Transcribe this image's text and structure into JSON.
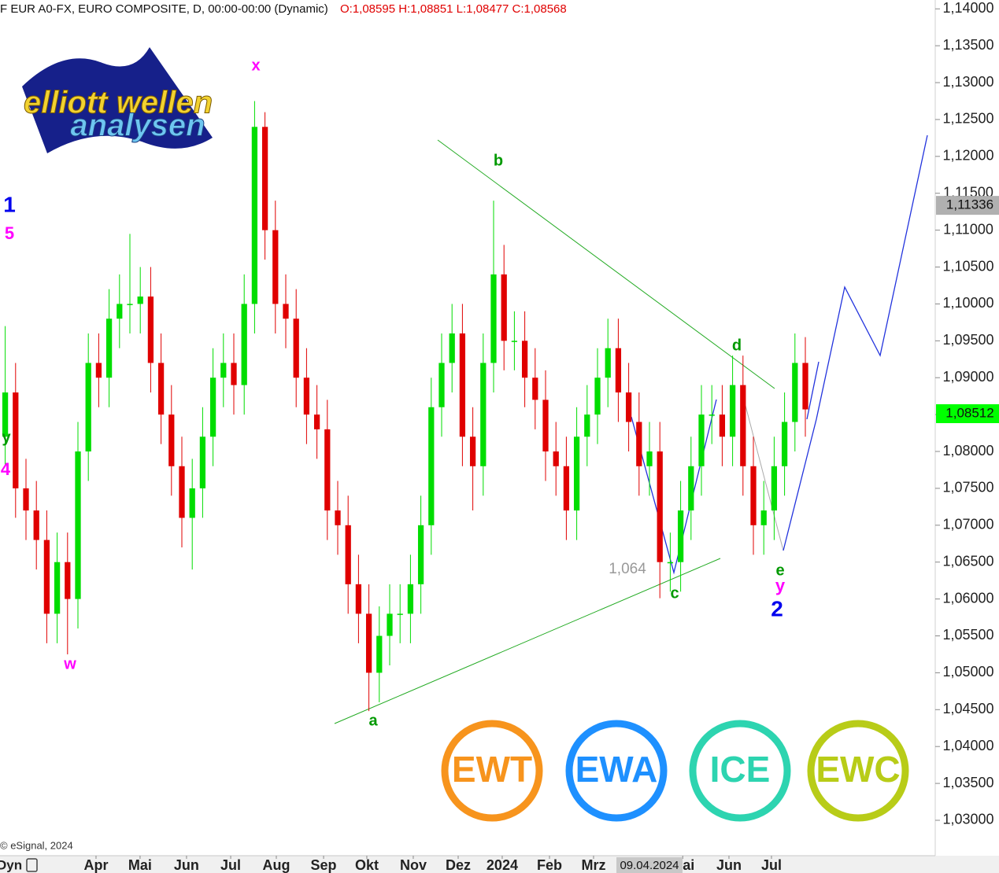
{
  "chart_data": {
    "type": "candlestick",
    "title": "F EUR A0-FX, EURO COMPOSITE, D, 00:00-00:00 (Dynamic)",
    "ohlc_label": "O:1,08595 H:1,08851 L:1,08477 C:1,08568",
    "source": "© eSignal, 2024",
    "up_color": "#00dd00",
    "down_color": "#e00000",
    "xlim": [
      -0.5,
      89.5
    ],
    "ylim": [
      1.0252,
      1.1412
    ],
    "grid": false,
    "open": [
      1.082,
      1.088,
      1.075,
      1.072,
      1.068,
      1.058,
      1.065,
      1.06,
      1.08,
      1.092,
      1.09,
      1.098,
      1.1,
      1.1,
      1.101,
      1.092,
      1.085,
      1.078,
      1.071,
      1.075,
      1.082,
      1.09,
      1.092,
      1.089,
      1.1,
      1.124,
      1.11,
      1.1,
      1.098,
      1.09,
      1.085,
      1.083,
      1.072,
      1.07,
      1.062,
      1.058,
      1.05,
      1.055,
      1.058,
      1.058,
      1.062,
      1.07,
      1.086,
      1.092,
      1.096,
      1.082,
      1.078,
      1.092,
      1.104,
      1.095,
      1.095,
      1.09,
      1.087,
      1.08,
      1.078,
      1.072,
      1.082,
      1.085,
      1.09,
      1.094,
      1.088,
      1.084,
      1.078,
      1.08,
      1.065,
      1.065,
      1.072,
      1.078,
      1.085,
      1.085,
      1.082,
      1.089,
      1.078,
      1.07,
      1.072,
      1.078,
      1.084,
      1.092
    ],
    "high": [
      1.097,
      1.092,
      1.079,
      1.076,
      1.072,
      1.069,
      1.069,
      1.084,
      1.096,
      1.096,
      1.102,
      1.104,
      1.1095,
      1.105,
      1.105,
      1.096,
      1.089,
      1.082,
      1.079,
      1.086,
      1.094,
      1.096,
      1.096,
      1.104,
      1.1275,
      1.126,
      1.114,
      1.104,
      1.102,
      1.094,
      1.089,
      1.087,
      1.076,
      1.074,
      1.066,
      1.062,
      1.059,
      1.062,
      1.062,
      1.066,
      1.074,
      1.09,
      1.096,
      1.1,
      1.1,
      1.086,
      1.096,
      1.114,
      1.108,
      1.099,
      1.099,
      1.094,
      1.091,
      1.084,
      1.082,
      1.086,
      1.089,
      1.094,
      1.098,
      1.098,
      1.092,
      1.088,
      1.084,
      1.084,
      1.069,
      1.076,
      1.082,
      1.089,
      1.089,
      1.089,
      1.093,
      1.093,
      1.082,
      1.076,
      1.082,
      1.088,
      1.096,
      1.0955
    ],
    "low": [
      1.078,
      1.071,
      1.068,
      1.064,
      1.054,
      1.054,
      1.0525,
      1.056,
      1.076,
      1.086,
      1.086,
      1.094,
      1.096,
      1.096,
      1.088,
      1.081,
      1.074,
      1.067,
      1.064,
      1.071,
      1.078,
      1.086,
      1.085,
      1.085,
      1.096,
      1.106,
      1.096,
      1.094,
      1.086,
      1.081,
      1.079,
      1.068,
      1.066,
      1.058,
      1.054,
      1.0448,
      1.046,
      1.051,
      1.054,
      1.054,
      1.058,
      1.066,
      1.082,
      1.088,
      1.078,
      1.072,
      1.074,
      1.088,
      1.091,
      1.091,
      1.086,
      1.083,
      1.076,
      1.074,
      1.068,
      1.068,
      1.078,
      1.081,
      1.086,
      1.084,
      1.08,
      1.074,
      1.074,
      1.0601,
      1.061,
      1.061,
      1.068,
      1.074,
      1.081,
      1.078,
      1.078,
      1.074,
      1.066,
      1.066,
      1.068,
      1.074,
      1.08,
      1.082
    ],
    "close": [
      1.088,
      1.075,
      1.072,
      1.068,
      1.058,
      1.065,
      1.06,
      1.08,
      1.092,
      1.09,
      1.098,
      1.1,
      1.1,
      1.101,
      1.092,
      1.085,
      1.078,
      1.071,
      1.075,
      1.082,
      1.09,
      1.092,
      1.089,
      1.1,
      1.124,
      1.11,
      1.1,
      1.098,
      1.09,
      1.085,
      1.083,
      1.072,
      1.07,
      1.062,
      1.058,
      1.05,
      1.055,
      1.058,
      1.058,
      1.062,
      1.07,
      1.086,
      1.092,
      1.096,
      1.082,
      1.078,
      1.092,
      1.104,
      1.095,
      1.095,
      1.09,
      1.087,
      1.08,
      1.078,
      1.072,
      1.082,
      1.085,
      1.09,
      1.094,
      1.088,
      1.084,
      1.078,
      1.08,
      1.065,
      1.065,
      1.072,
      1.078,
      1.085,
      1.085,
      1.082,
      1.089,
      1.078,
      1.07,
      1.072,
      1.078,
      1.084,
      1.092,
      1.0857
    ],
    "yticks": [
      {
        "value": 1.14,
        "label": "1,14000"
      },
      {
        "value": 1.135,
        "label": "1,13500"
      },
      {
        "value": 1.13,
        "label": "1,13000"
      },
      {
        "value": 1.125,
        "label": "1,12500"
      },
      {
        "value": 1.12,
        "label": "1,12000"
      },
      {
        "value": 1.115,
        "label": "1,11500"
      },
      {
        "value": 1.11,
        "label": "1,11000"
      },
      {
        "value": 1.105,
        "label": "1,10500"
      },
      {
        "value": 1.1,
        "label": "1,10000"
      },
      {
        "value": 1.095,
        "label": "1,09500"
      },
      {
        "value": 1.09,
        "label": "1,09000"
      },
      {
        "value": 1.085,
        "label": "1,08500"
      },
      {
        "value": 1.08,
        "label": "1,08000"
      },
      {
        "value": 1.075,
        "label": "1,07500"
      },
      {
        "value": 1.07,
        "label": "1,07000"
      },
      {
        "value": 1.065,
        "label": "1,06500"
      },
      {
        "value": 1.06,
        "label": "1,06000"
      },
      {
        "value": 1.055,
        "label": "1,05500"
      },
      {
        "value": 1.05,
        "label": "1,05000"
      },
      {
        "value": 1.045,
        "label": "1,04500"
      },
      {
        "value": 1.04,
        "label": "1,04000"
      },
      {
        "value": 1.035,
        "label": "1,03500"
      },
      {
        "value": 1.03,
        "label": "1,03000"
      }
    ],
    "xticks": [
      {
        "value": 8.74,
        "label": "Apr"
      },
      {
        "value": 12.98,
        "label": "Mai"
      },
      {
        "value": 17.45,
        "label": "Jun"
      },
      {
        "value": 21.7,
        "label": "Jul"
      },
      {
        "value": 26.09,
        "label": "Aug"
      },
      {
        "value": 30.64,
        "label": "Sep"
      },
      {
        "value": 34.8,
        "label": "Okt"
      },
      {
        "value": 39.27,
        "label": "Nov"
      },
      {
        "value": 43.59,
        "label": "Dez"
      },
      {
        "value": 47.83,
        "label": "2024"
      },
      {
        "value": 52.38,
        "label": "Feb"
      },
      {
        "value": 56.62,
        "label": "Mrz"
      },
      {
        "value": 65.2,
        "label": "Mai"
      },
      {
        "value": 69.65,
        "label": "Jun"
      },
      {
        "value": 73.74,
        "label": "Jul"
      }
    ],
    "cursor_label": {
      "value": 62.0,
      "label": "09.04.2024"
    },
    "price_markers": [
      {
        "value": 1.11336,
        "label": "1,11336",
        "color": "#b0b0b0"
      },
      {
        "value": 1.08512,
        "label": "1,08512",
        "color": "#00ff00"
      }
    ],
    "level_annotation": {
      "value": 1.064,
      "label": "1,064"
    },
    "annotations": [
      {
        "text": "x",
        "color": "#ff00ff"
      },
      {
        "text": "b",
        "color": "#009900"
      },
      {
        "text": "1",
        "color": "#0000ee"
      },
      {
        "text": "5",
        "color": "#ff00ff"
      },
      {
        "text": "y",
        "color": "#009900"
      },
      {
        "text": "4",
        "color": "#ff00ff"
      },
      {
        "text": "w",
        "color": "#ff00ff"
      },
      {
        "text": "a",
        "color": "#009900"
      },
      {
        "text": "c",
        "color": "#009900"
      },
      {
        "text": "d",
        "color": "#009900"
      },
      {
        "text": "e",
        "color": "#009900"
      },
      {
        "text": "y",
        "color": "#ff00ff"
      },
      {
        "text": "2",
        "color": "#0000ee"
      }
    ]
  },
  "logos": {
    "line1": "elliott wellen",
    "line2": "analysen",
    "badges": [
      {
        "text": "EWT",
        "color": "#f7941d"
      },
      {
        "text": "EWA",
        "color": "#1e90ff"
      },
      {
        "text": "ICE",
        "color": "#2dd4b0"
      },
      {
        "text": "EWC",
        "color": "#b8cc18"
      }
    ]
  },
  "toolbar": {
    "label": "Dyn"
  }
}
